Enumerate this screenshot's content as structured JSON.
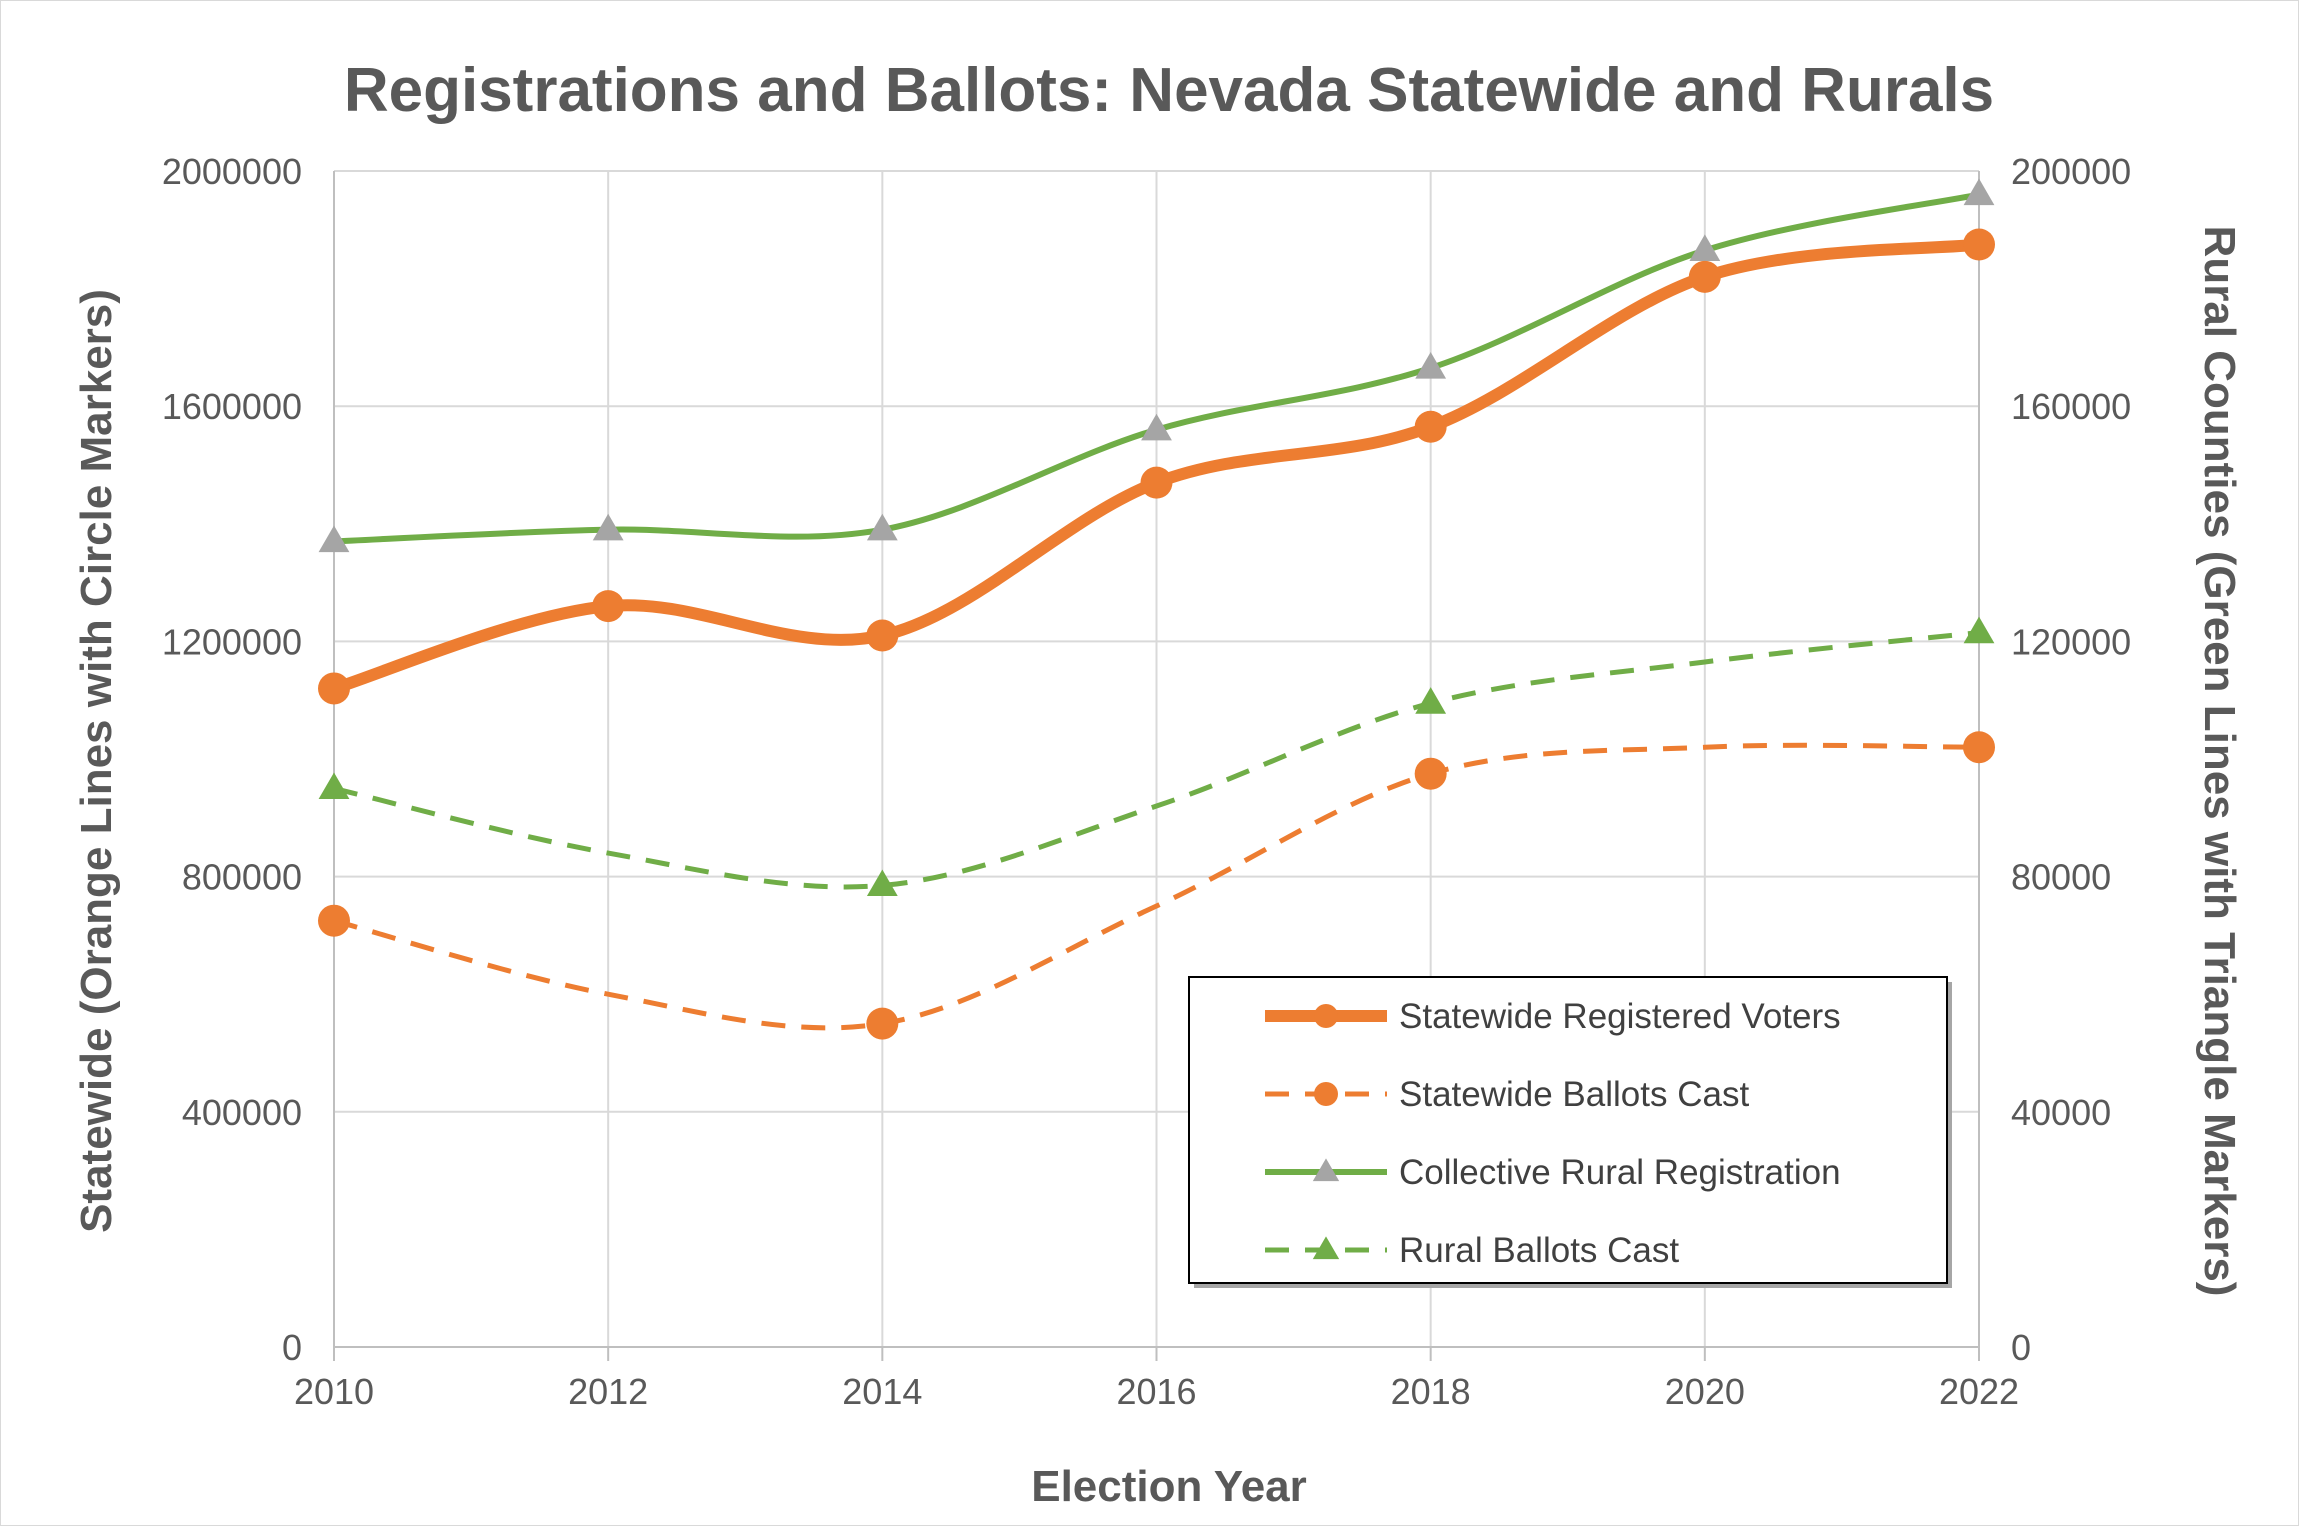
{
  "chart_data": {
    "type": "line",
    "title": "Registrations and Ballots: Nevada Statewide and Rurals",
    "xlabel": "Election Year",
    "ylabel_left": "Statewide (Orange Lines with Circle Markers)",
    "ylabel_right": "Rural Counties (Green Lines with Triangle Markers)",
    "x": [
      2010,
      2012,
      2014,
      2016,
      2018,
      2020,
      2022
    ],
    "x_ticks": [
      "2010",
      "2012",
      "2014",
      "2016",
      "2018",
      "2020",
      "2022"
    ],
    "xlim": [
      2010,
      2022
    ],
    "ylim_left": [
      0,
      2000000
    ],
    "ylim_right": [
      0,
      200000
    ],
    "yticks_left": [
      "0",
      "400000",
      "800000",
      "1200000",
      "1600000",
      "2000000"
    ],
    "yticks_right": [
      "0",
      "40000",
      "80000",
      "120000",
      "160000",
      "200000"
    ],
    "grid": true,
    "legend_position": "bottom-right",
    "series": [
      {
        "name": "Statewide Registered Voters",
        "axis": "left",
        "values": [
          1120000,
          1260000,
          1210000,
          1470000,
          1565000,
          1820000,
          1875000
        ],
        "color": "#ED7D31",
        "line": "solid",
        "marker": "circle",
        "marker_color": "#ED7D31",
        "markers_at": [
          0,
          1,
          2,
          3,
          4,
          5,
          6
        ]
      },
      {
        "name": "Statewide Ballots Cast",
        "axis": "left",
        "values": [
          725000,
          600000,
          550000,
          750000,
          975000,
          1020000,
          1020000
        ],
        "color": "#ED7D31",
        "line": "dashed",
        "marker": "circle",
        "marker_color": "#ED7D31",
        "markers_at": [
          0,
          2,
          4,
          6
        ]
      },
      {
        "name": "Collective Rural Registration",
        "axis": "right",
        "values": [
          137000,
          139000,
          139000,
          156000,
          166500,
          186500,
          196000
        ],
        "color": "#70AD47",
        "line": "solid",
        "marker": "triangle",
        "marker_color": "#A5A5A5",
        "markers_at": [
          0,
          1,
          2,
          3,
          4,
          5,
          6
        ]
      },
      {
        "name": "Rural Ballots Cast",
        "axis": "right",
        "values": [
          95000,
          84000,
          78500,
          92000,
          109500,
          116500,
          121500
        ],
        "color": "#70AD47",
        "line": "dashed",
        "marker": "triangle",
        "marker_color": "#70AD47",
        "markers_at": [
          0,
          2,
          4,
          6
        ]
      }
    ]
  }
}
